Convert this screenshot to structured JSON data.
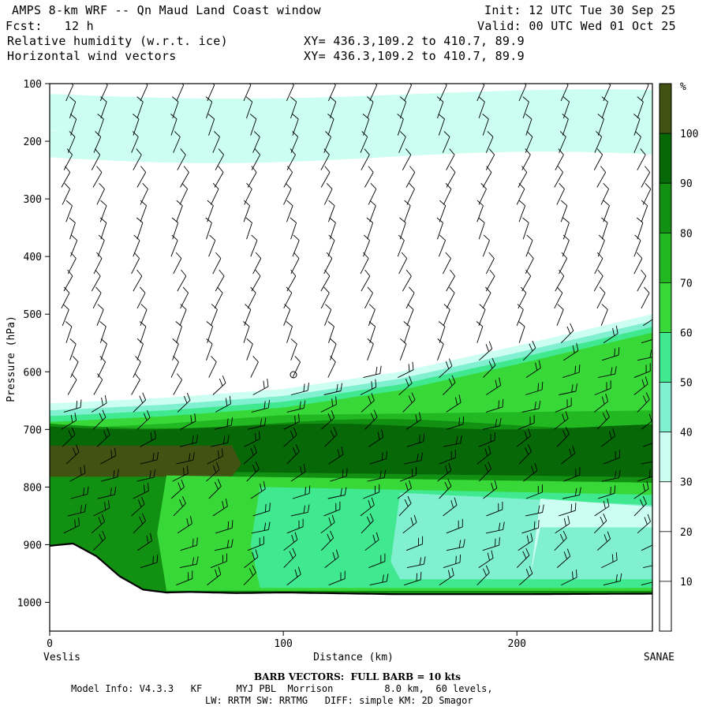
{
  "header": {
    "title": "AMPS 8-km WRF -- Qn Maud Land Coast window",
    "init": "Init: 12 UTC Tue 30 Sep 25",
    "fcst": "Fcst:   12 h",
    "valid": "Valid: 00 UTC Wed 01 Oct 25",
    "field1": "Relative humidity (w.r.t. ice)",
    "xy1": "XY= 436.3,109.2 to 410.7, 89.9",
    "field2": "Horizontal wind vectors",
    "xy2": "XY= 436.3,109.2 to 410.7, 89.9"
  },
  "footer": {
    "barb_note": "BARB VECTORS:  FULL BARB = 10 kts",
    "model_info_1": "Model Info: V4.3.3   KF      MYJ PBL  Morrison         8.0 km,  60 levels,",
    "model_info_2": "LW: RRTM SW: RRTMG   DIFF: simple KM: 2D Smagor"
  },
  "colors": {
    "c30_40": "#ccfff2",
    "c40_50": "#80f0d0",
    "c50_60": "#40e890",
    "c60_70": "#38d838",
    "c70_80": "#22b822",
    "c80_90": "#129012",
    "c90_100": "#066806",
    "c100": "#425212"
  },
  "chart_data": {
    "type": "cross-section",
    "title": "Relative humidity (w.r.t. ice) and horizontal wind vectors",
    "xlabel": "Distance (km)",
    "ylabel": "Pressure (hPa)",
    "xlim": [
      0,
      258
    ],
    "ylim": [
      1050,
      100
    ],
    "x_ticks": [
      0,
      100,
      200
    ],
    "y_ticks": [
      100,
      200,
      300,
      400,
      500,
      600,
      700,
      800,
      900,
      1000
    ],
    "x_end_labels": {
      "left": "Veslis",
      "right": "SANAE"
    },
    "colorbar": {
      "unit": "%",
      "levels": [
        10,
        20,
        30,
        40,
        50,
        60,
        70,
        80,
        90,
        100
      ],
      "bins": [
        {
          "range": [
            0,
            30
          ],
          "color": "#ffffff"
        },
        {
          "range": [
            30,
            40
          ],
          "color": "#ccfff2"
        },
        {
          "range": [
            40,
            50
          ],
          "color": "#80f0d0"
        },
        {
          "range": [
            50,
            60
          ],
          "color": "#40e890"
        },
        {
          "range": [
            60,
            70
          ],
          "color": "#38d838"
        },
        {
          "range": [
            70,
            80
          ],
          "color": "#22b822"
        },
        {
          "range": [
            80,
            90
          ],
          "color": "#129012"
        },
        {
          "range": [
            90,
            100
          ],
          "color": "#066806"
        },
        {
          "range": [
            100,
            110
          ],
          "color": "#425212"
        }
      ]
    },
    "terrain_surface_pressure": {
      "x_km": [
        0,
        10,
        20,
        30,
        40,
        50,
        60,
        80,
        100,
        150,
        200,
        258
      ],
      "p_hpa": [
        902,
        898,
        920,
        955,
        978,
        983,
        982,
        984,
        983,
        986,
        986,
        985
      ]
    },
    "moist_layer_top_hpa": {
      "x_km": [
        0,
        50,
        100,
        150,
        200,
        258
      ],
      "p_hpa": [
        655,
        645,
        630,
        600,
        555,
        500
      ]
    },
    "barb_columns_km": [
      7,
      20,
      37,
      54,
      69,
      85,
      102,
      118,
      135,
      151,
      168,
      185,
      202,
      218,
      235,
      252
    ],
    "barb_levels_hpa": [
      130,
      160,
      190,
      220,
      250,
      280,
      310,
      340,
      370,
      400,
      430,
      460,
      490,
      520,
      550,
      580,
      610,
      640,
      670,
      700,
      730,
      760,
      790,
      820,
      850,
      880,
      910,
      940,
      970
    ]
  }
}
